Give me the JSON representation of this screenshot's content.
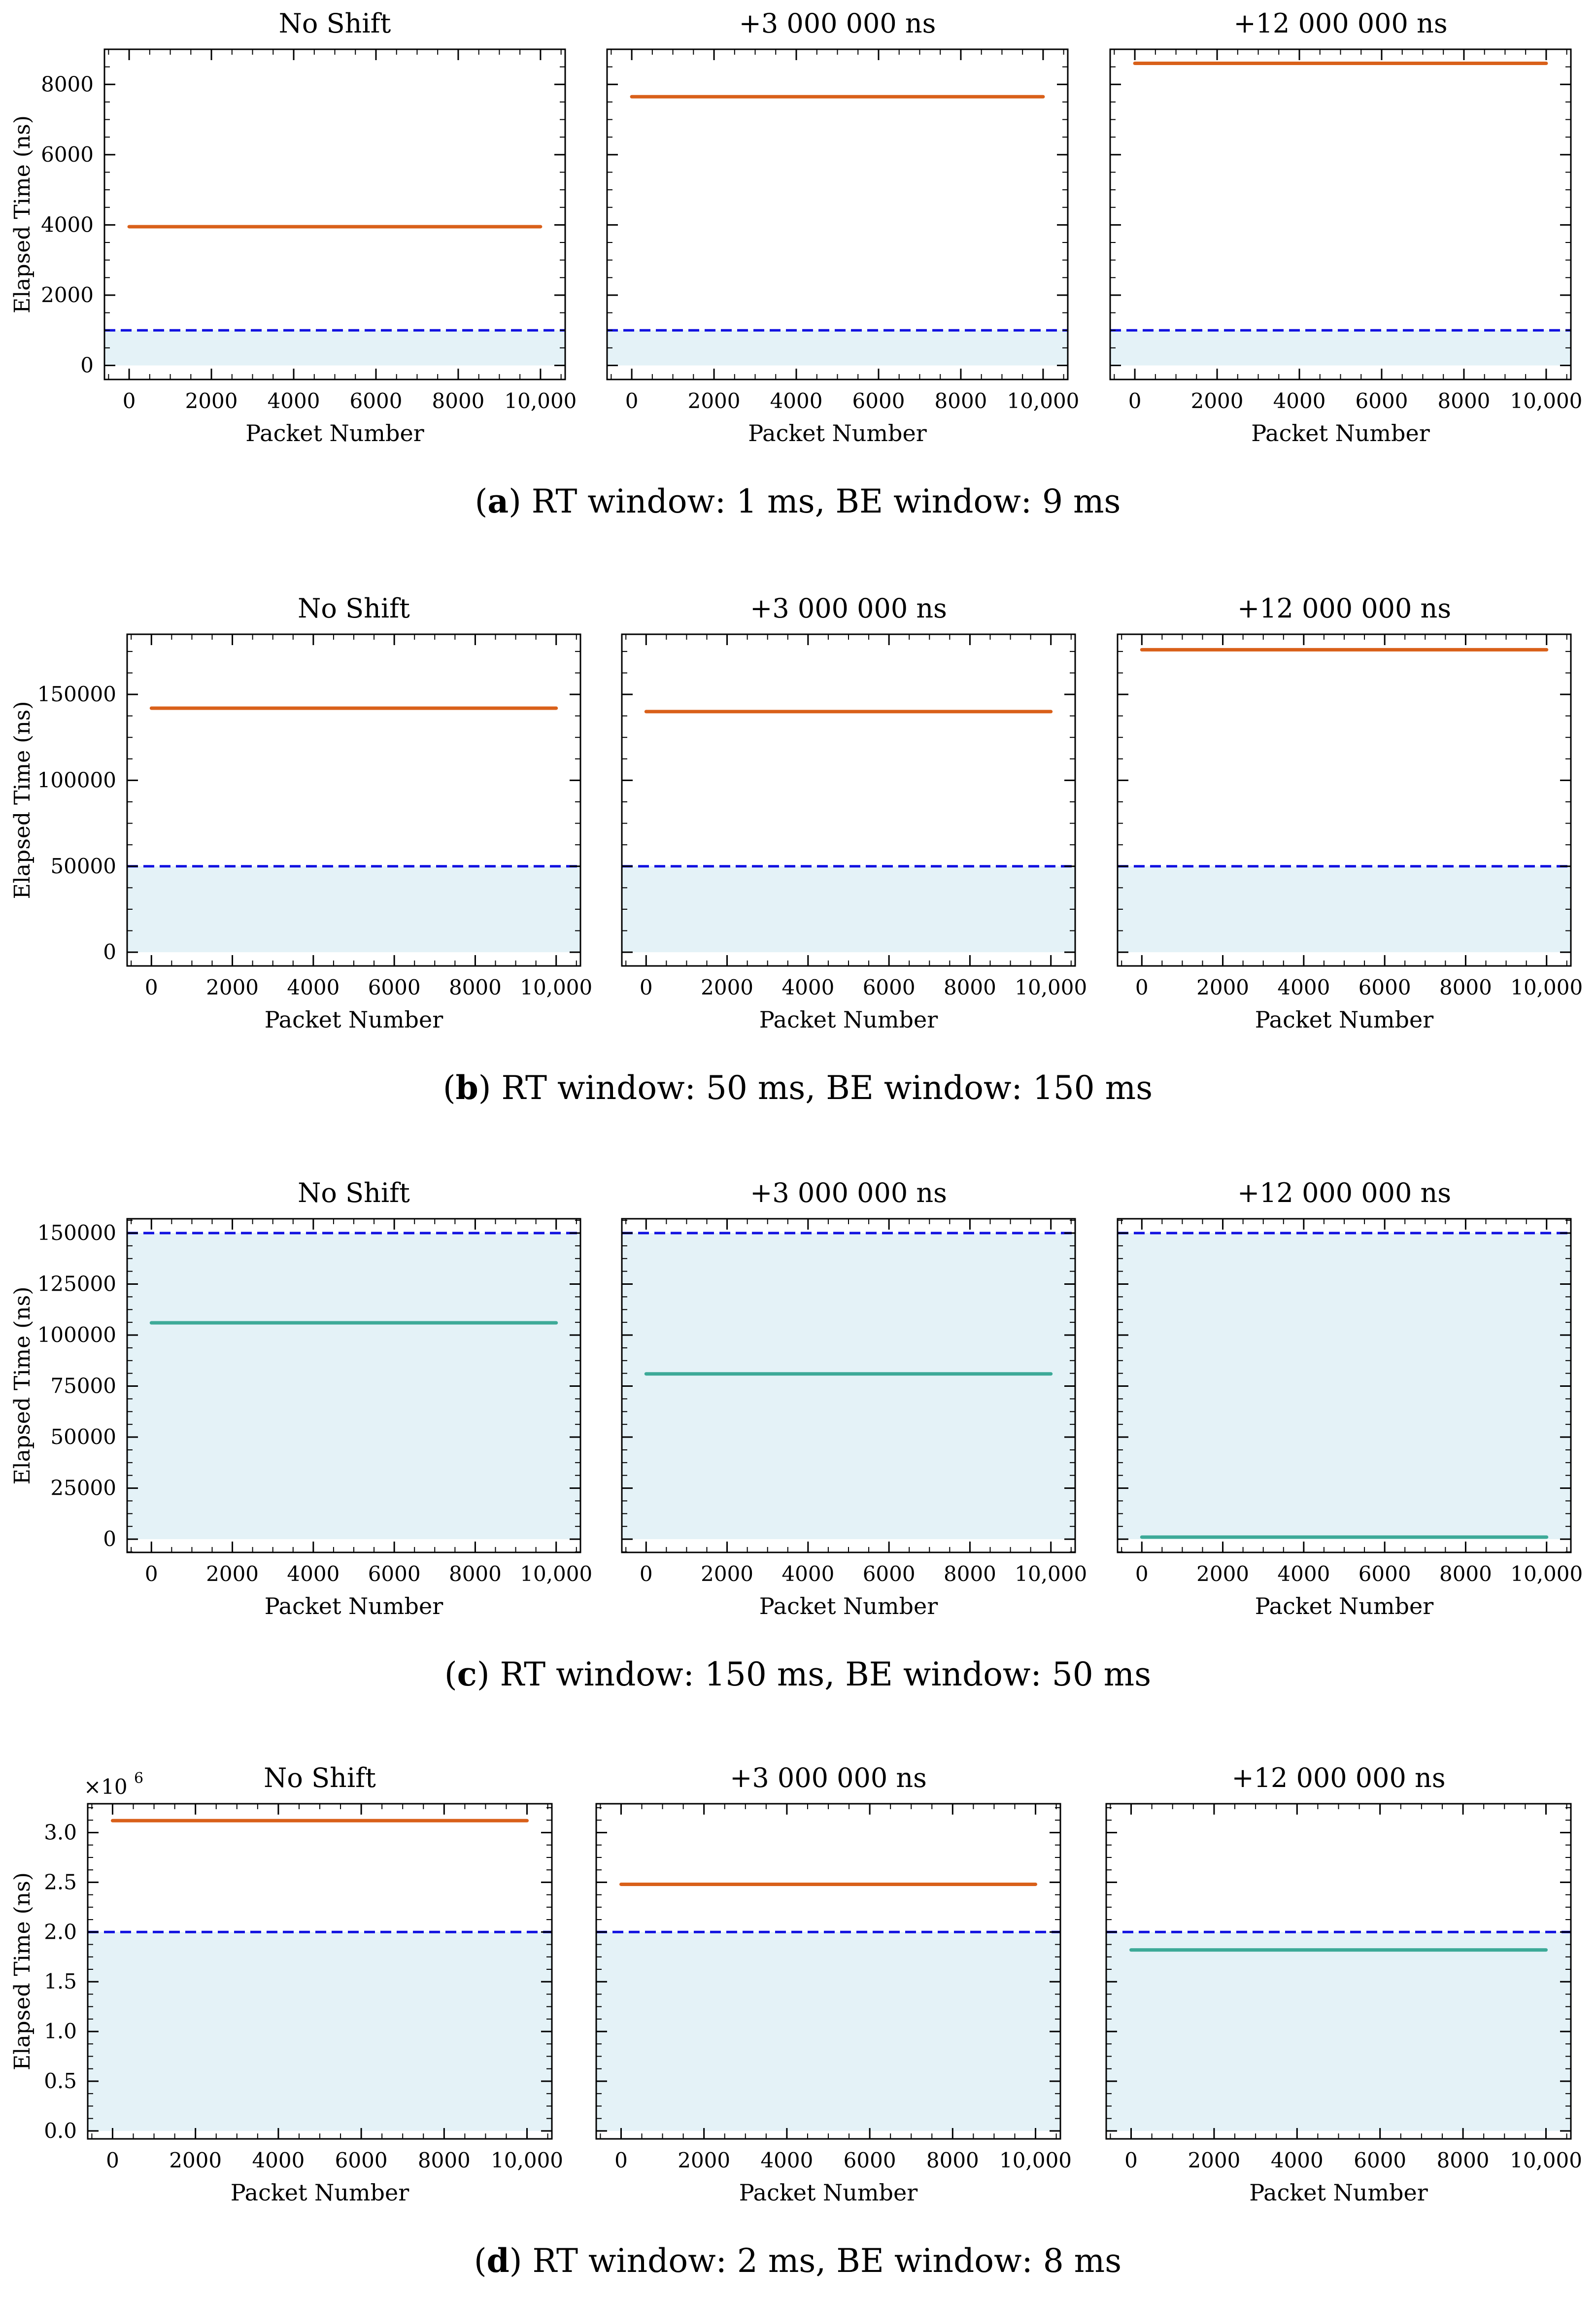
{
  "colors": {
    "shade": "#e4f2f7",
    "threshold": "#1010e0",
    "late": "#d9601a",
    "ontime": "#3daa98",
    "axis": "#000000"
  },
  "chart_data": [
    {
      "id": "a",
      "caption_letter": "a",
      "caption_text": " RT window: 1 ms, BE window: 9 ms",
      "ylabel": "Elapsed Time (ns)",
      "ylim": [
        -400,
        9000
      ],
      "yticks": [
        0,
        2000,
        4000,
        6000,
        8000
      ],
      "ytick_labels": [
        "0",
        "2000",
        "4000",
        "6000",
        "8000"
      ],
      "offset_label": "",
      "panels": [
        {
          "title": "No Shift",
          "type": "line",
          "xlabel": "Packet Number",
          "x": [
            0,
            10000
          ],
          "y": [
            3950,
            3950
          ],
          "series_color": "late",
          "threshold": 1000,
          "xticks": [
            0,
            2000,
            4000,
            6000,
            8000,
            10000
          ],
          "xtick_labels": [
            "0",
            "2000",
            "4000",
            "6000",
            "8000",
            "10,000"
          ]
        },
        {
          "title": "+3 000 000 ns",
          "type": "line",
          "xlabel": "Packet Number",
          "x": [
            0,
            10000
          ],
          "y": [
            7650,
            7650
          ],
          "series_color": "late",
          "threshold": 1000,
          "xticks": [
            0,
            2000,
            4000,
            6000,
            8000,
            10000
          ],
          "xtick_labels": [
            "0",
            "2000",
            "4000",
            "6000",
            "8000",
            "10,000"
          ]
        },
        {
          "title": "+12 000 000 ns",
          "type": "line",
          "xlabel": "Packet Number",
          "x": [
            0,
            10000
          ],
          "y": [
            8600,
            8600
          ],
          "series_color": "late",
          "threshold": 1000,
          "xticks": [
            0,
            2000,
            4000,
            6000,
            8000,
            10000
          ],
          "xtick_labels": [
            "0",
            "2000",
            "4000",
            "6000",
            "8000",
            "10,000"
          ]
        }
      ]
    },
    {
      "id": "b",
      "caption_letter": "b",
      "caption_text": " RT window: 50 ms, BE window: 150 ms",
      "ylabel": "Elapsed Time (ns)",
      "ylim": [
        -8000,
        185000
      ],
      "yticks": [
        0,
        50000,
        100000,
        150000
      ],
      "ytick_labels": [
        "0",
        "50000",
        "100000",
        "150000"
      ],
      "offset_label": "",
      "panels": [
        {
          "title": "No Shift",
          "type": "line",
          "xlabel": "Packet Number",
          "x": [
            0,
            10000
          ],
          "y": [
            142000,
            142000
          ],
          "series_color": "late",
          "threshold": 50000,
          "xticks": [
            0,
            2000,
            4000,
            6000,
            8000,
            10000
          ],
          "xtick_labels": [
            "0",
            "2000",
            "4000",
            "6000",
            "8000",
            "10,000"
          ]
        },
        {
          "title": "+3 000 000 ns",
          "type": "line",
          "xlabel": "Packet Number",
          "x": [
            0,
            10000
          ],
          "y": [
            140000,
            140000
          ],
          "series_color": "late",
          "threshold": 50000,
          "xticks": [
            0,
            2000,
            4000,
            6000,
            8000,
            10000
          ],
          "xtick_labels": [
            "0",
            "2000",
            "4000",
            "6000",
            "8000",
            "10,000"
          ]
        },
        {
          "title": "+12 000 000 ns",
          "type": "line",
          "xlabel": "Packet Number",
          "x": [
            0,
            10000
          ],
          "y": [
            176000,
            176000
          ],
          "series_color": "late",
          "threshold": 50000,
          "xticks": [
            0,
            2000,
            4000,
            6000,
            8000,
            10000
          ],
          "xtick_labels": [
            "0",
            "2000",
            "4000",
            "6000",
            "8000",
            "10,000"
          ]
        }
      ]
    },
    {
      "id": "c",
      "caption_letter": "c",
      "caption_text": " RT window: 150 ms, BE window: 50 ms",
      "ylabel": "Elapsed Time (ns)",
      "ylim": [
        -6500,
        157000
      ],
      "yticks": [
        0,
        25000,
        50000,
        75000,
        100000,
        125000,
        150000
      ],
      "ytick_labels": [
        "0",
        "25000",
        "50000",
        "75000",
        "100000",
        "125000",
        "150000"
      ],
      "offset_label": "",
      "panels": [
        {
          "title": "No Shift",
          "type": "line",
          "xlabel": "Packet Number",
          "x": [
            0,
            10000
          ],
          "y": [
            106000,
            106000
          ],
          "series_color": "ontime",
          "threshold": 150000,
          "xticks": [
            0,
            2000,
            4000,
            6000,
            8000,
            10000
          ],
          "xtick_labels": [
            "0",
            "2000",
            "4000",
            "6000",
            "8000",
            "10,000"
          ]
        },
        {
          "title": "+3 000 000 ns",
          "type": "line",
          "xlabel": "Packet Number",
          "x": [
            0,
            10000
          ],
          "y": [
            81000,
            81000
          ],
          "series_color": "ontime",
          "threshold": 150000,
          "xticks": [
            0,
            2000,
            4000,
            6000,
            8000,
            10000
          ],
          "xtick_labels": [
            "0",
            "2000",
            "4000",
            "6000",
            "8000",
            "10,000"
          ]
        },
        {
          "title": "+12 000 000 ns",
          "type": "line",
          "xlabel": "Packet Number",
          "x": [
            0,
            10000
          ],
          "y": [
            1000,
            1000
          ],
          "series_color": "ontime",
          "threshold": 150000,
          "xticks": [
            0,
            2000,
            4000,
            6000,
            8000,
            10000
          ],
          "xtick_labels": [
            "0",
            "2000",
            "4000",
            "6000",
            "8000",
            "10,000"
          ]
        }
      ]
    },
    {
      "id": "d",
      "caption_letter": "d",
      "caption_text": " RT window: 2 ms, BE window: 8 ms",
      "ylabel": "Elapsed Time (ns)",
      "ylim": [
        -0.08,
        3.29
      ],
      "yticks": [
        0,
        0.5,
        1.0,
        1.5,
        2.0,
        2.5,
        3.0
      ],
      "ytick_labels": [
        "0.0",
        "0.5",
        "1.0",
        "1.5",
        "2.0",
        "2.5",
        "3.0"
      ],
      "offset_label": "×10",
      "offset_exponent": "6",
      "panels": [
        {
          "title": "No Shift",
          "type": "line",
          "xlabel": "Packet Number",
          "x": [
            0,
            10000
          ],
          "y": [
            3.12,
            3.12
          ],
          "series_color": "late",
          "threshold": 2.0,
          "xticks": [
            0,
            2000,
            4000,
            6000,
            8000,
            10000
          ],
          "xtick_labels": [
            "0",
            "2000",
            "4000",
            "6000",
            "8000",
            "10,000"
          ]
        },
        {
          "title": "+3 000 000 ns",
          "type": "line",
          "xlabel": "Packet Number",
          "x": [
            0,
            10000
          ],
          "y": [
            2.48,
            2.48
          ],
          "series_color": "late",
          "threshold": 2.0,
          "xticks": [
            0,
            2000,
            4000,
            6000,
            8000,
            10000
          ],
          "xtick_labels": [
            "0",
            "2000",
            "4000",
            "6000",
            "8000",
            "10,000"
          ]
        },
        {
          "title": "+12 000 000 ns",
          "type": "line",
          "xlabel": "Packet Number",
          "x": [
            0,
            10000
          ],
          "y": [
            1.82,
            1.82
          ],
          "series_color": "ontime",
          "threshold": 2.0,
          "xticks": [
            0,
            2000,
            4000,
            6000,
            8000,
            10000
          ],
          "xtick_labels": [
            "0",
            "2000",
            "4000",
            "6000",
            "8000",
            "10,000"
          ]
        }
      ]
    }
  ]
}
